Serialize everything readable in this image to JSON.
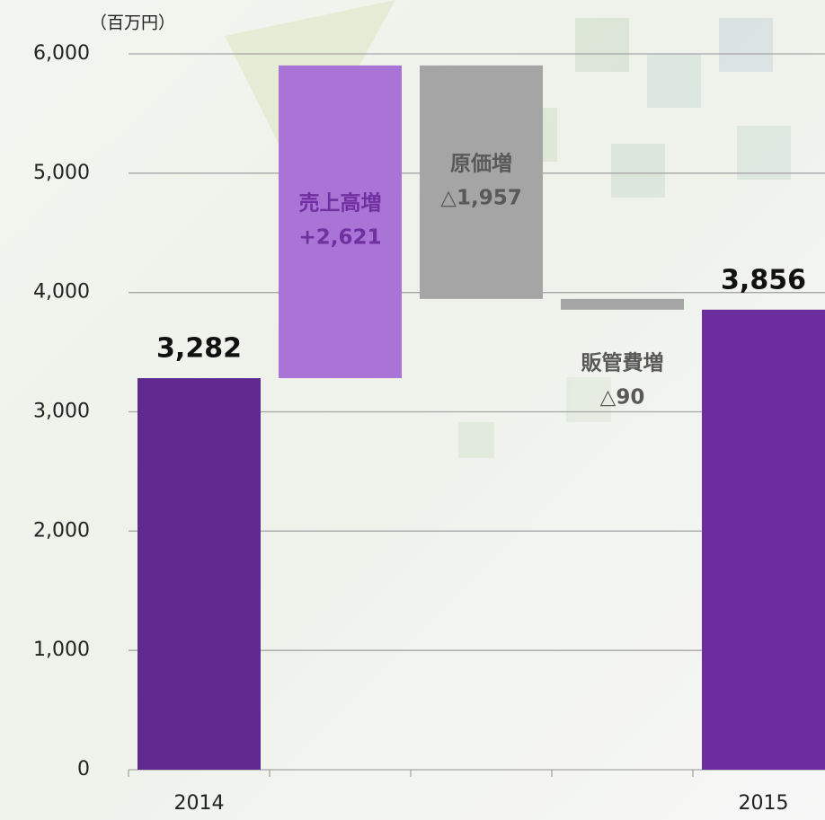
{
  "chart_data": {
    "type": "waterfall",
    "y_unit_label": "（百万円）",
    "categories": [
      "2014",
      null,
      null,
      null,
      "2015"
    ],
    "bar_names": [
      null,
      "売上高増",
      "原価増",
      "販管費増",
      null
    ],
    "values": [
      3282,
      2621,
      -1957,
      -90,
      3856
    ],
    "value_labels": [
      "3,282",
      "+2,621",
      "△1,957",
      "△90",
      "3,856"
    ],
    "totals": [
      true,
      false,
      false,
      false,
      true
    ],
    "colors": [
      "#5f2990",
      "#a974d5",
      "#a5a5a5",
      "#a5a5a5",
      "#6c2e9e"
    ],
    "ylim": [
      0,
      6000
    ],
    "yticks": [
      0,
      {
        "value": 1000,
        "label": "1,000"
      },
      {
        "value": 2000,
        "label": "2,000"
      },
      {
        "value": 3000,
        "label": "3,000"
      },
      {
        "value": 4000,
        "label": "4,000"
      },
      {
        "value": 5000,
        "label": "5,000"
      },
      {
        "value": 6000,
        "label": "6,000"
      }
    ],
    "grid": true
  }
}
